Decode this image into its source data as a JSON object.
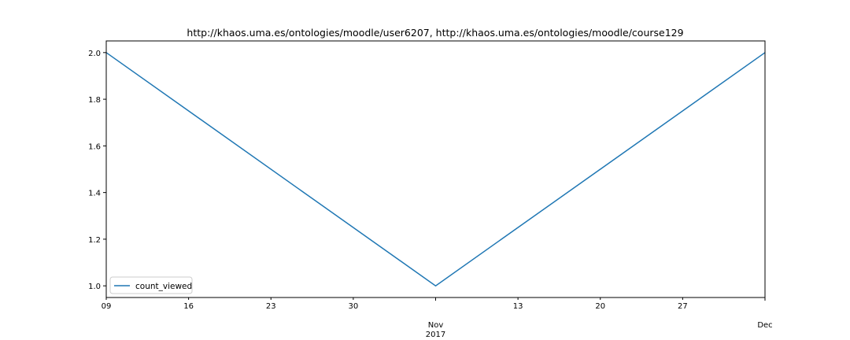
{
  "chart_data": {
    "type": "line",
    "title": "http://khaos.uma.es/ontologies/moodle/user6207, http://khaos.uma.es/ontologies/moodle/course129",
    "xlabel": "",
    "ylabel": "",
    "x": [
      "2017-10-09",
      "2017-11-06",
      "2017-12-04"
    ],
    "series": [
      {
        "name": "count_viewed",
        "values": [
          2.0,
          1.0,
          2.0
        ],
        "color": "#1f77b4"
      }
    ],
    "ylim": [
      0.95,
      2.05
    ],
    "xlim": [
      "2017-10-09",
      "2017-12-04"
    ],
    "y_ticks": [
      "1.0",
      "1.2",
      "1.4",
      "1.6",
      "1.8",
      "2.0"
    ],
    "x_ticks": [
      {
        "date": "2017-10-09",
        "label": "09"
      },
      {
        "date": "2017-10-16",
        "label": "16"
      },
      {
        "date": "2017-10-23",
        "label": "23"
      },
      {
        "date": "2017-10-30",
        "label": "30"
      },
      {
        "date": "2017-11-06",
        "label": "Nov",
        "sublabel": "2017"
      },
      {
        "date": "2017-11-13",
        "label": "13"
      },
      {
        "date": "2017-11-20",
        "label": "20"
      },
      {
        "date": "2017-11-27",
        "label": "27"
      },
      {
        "date": "2017-12-04",
        "label": "Dec"
      }
    ],
    "grid": false,
    "legend_position": "lower-left"
  }
}
